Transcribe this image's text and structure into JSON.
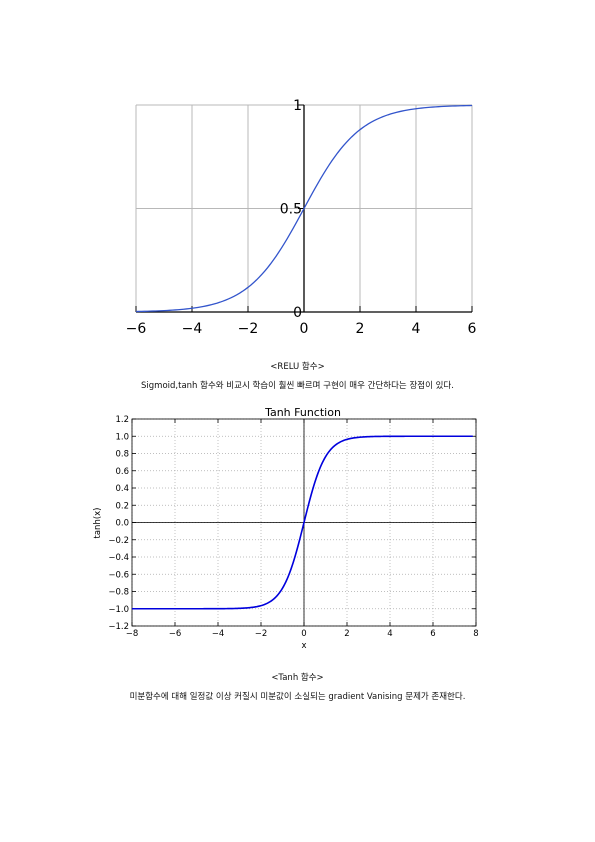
{
  "chart_data": [
    {
      "type": "line",
      "title": "",
      "xlabel": "",
      "ylabel": "",
      "xlim": [
        -6,
        6
      ],
      "ylim": [
        0,
        1
      ],
      "x_ticks": [
        "−6",
        "−4",
        "−2",
        "0",
        "2",
        "4",
        "6"
      ],
      "y_ticks": [
        "0",
        "0.5",
        "1"
      ],
      "grid": true,
      "series": [
        {
          "color": "#3355cc",
          "x": [
            -6,
            -5,
            -4,
            -3,
            -2,
            -1,
            0,
            1,
            2,
            3,
            4,
            5,
            6
          ],
          "y": [
            0.0025,
            0.0067,
            0.018,
            0.047,
            0.119,
            0.269,
            0.5,
            0.731,
            0.881,
            0.953,
            0.982,
            0.993,
            0.9975
          ]
        }
      ]
    },
    {
      "type": "line",
      "title": "Tanh Function",
      "xlabel": "x",
      "ylabel": "tanh(x)",
      "xlim": [
        -8,
        8
      ],
      "ylim": [
        -1.2,
        1.2
      ],
      "x_ticks": [
        "−8",
        "−6",
        "−4",
        "−2",
        "0",
        "2",
        "4",
        "6",
        "8"
      ],
      "y_ticks": [
        "1.2",
        "1.0",
        "0.8",
        "0.6",
        "0.4",
        "0.2",
        "0.0",
        "−0.2",
        "−0.4",
        "−0.6",
        "−0.8",
        "−1.0",
        "−1.2"
      ],
      "grid": true,
      "series": [
        {
          "color": "#0000dd",
          "x": [
            -8,
            -4,
            -3,
            -2.5,
            -2,
            -1.5,
            -1,
            -0.5,
            0,
            0.5,
            1,
            1.5,
            2,
            2.5,
            3,
            4,
            8
          ],
          "y": [
            -1.0,
            -0.999,
            -0.995,
            -0.987,
            -0.964,
            -0.905,
            -0.762,
            -0.462,
            0.0,
            0.462,
            0.762,
            0.905,
            0.964,
            0.987,
            0.995,
            0.999,
            1.0
          ]
        }
      ]
    }
  ],
  "captions": {
    "chart1_caption": "<RELU 함수>",
    "chart1_description": "Sigmoid,tanh 함수와 비교시 학습이 훨씬 빠르며 구현이 매우 간단하다는 장점이 있다.",
    "chart2_caption": "<Tanh 함수>",
    "chart2_description": "미분함수에 대해 일정값 이상 커질시 미분값이 소실되는 gradient Vanising 문제가 존재한다."
  }
}
